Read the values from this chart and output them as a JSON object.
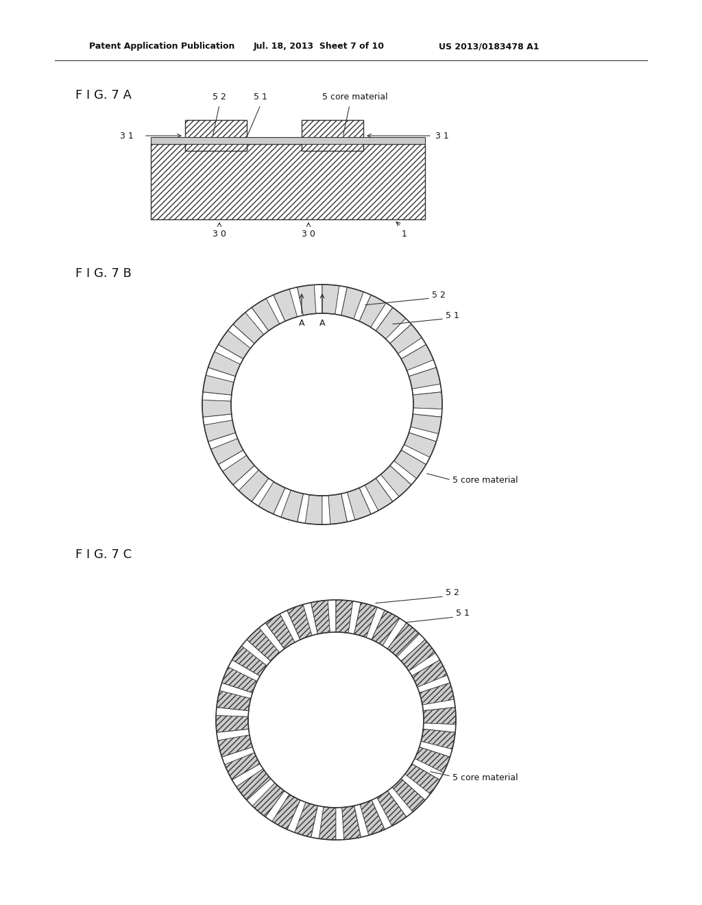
{
  "bg_color": "#ffffff",
  "header_text1": "Patent Application Publication",
  "header_text2": "Jul. 18, 2013  Sheet 7 of 10",
  "header_text3": "US 2013/0183478 A1",
  "fig7a_label": "F I G. 7 A",
  "fig7b_label": "F I G. 7 B",
  "fig7c_label": "F I G. 7 C",
  "hatch_color": "#444444",
  "line_color": "#333333",
  "seg_fill": "#cccccc",
  "seg_fill_b": "#d8d8d8"
}
